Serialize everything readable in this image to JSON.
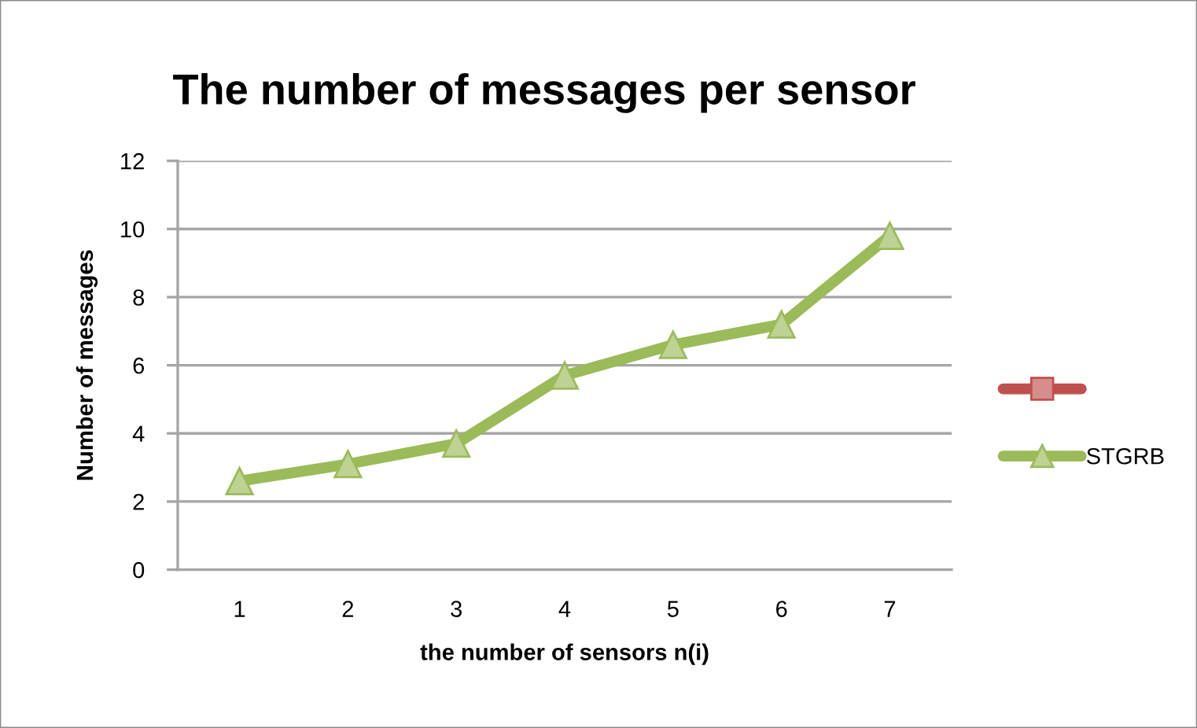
{
  "chart_data": {
    "type": "line",
    "title": "The number of messages per sensor",
    "xlabel": "the number of sensors n(i)",
    "ylabel": "Number of messages",
    "categories": [
      "1",
      "2",
      "3",
      "4",
      "5",
      "6",
      "7"
    ],
    "series": [
      {
        "color": "#c0504d",
        "marker": "square",
        "values": [
          null,
          null,
          null,
          null,
          null,
          null,
          null
        ]
      },
      {
        "name": "STGRB",
        "color": "#9bbb59",
        "marker": "triangle",
        "values": [
          2.6,
          3.1,
          3.7,
          5.7,
          6.6,
          7.2,
          9.8
        ]
      }
    ],
    "ylim": [
      0,
      12
    ],
    "yticks": [
      0,
      2,
      4,
      6,
      8,
      10,
      12
    ],
    "grid": "y",
    "legend": "right",
    "line_style": "solid"
  }
}
